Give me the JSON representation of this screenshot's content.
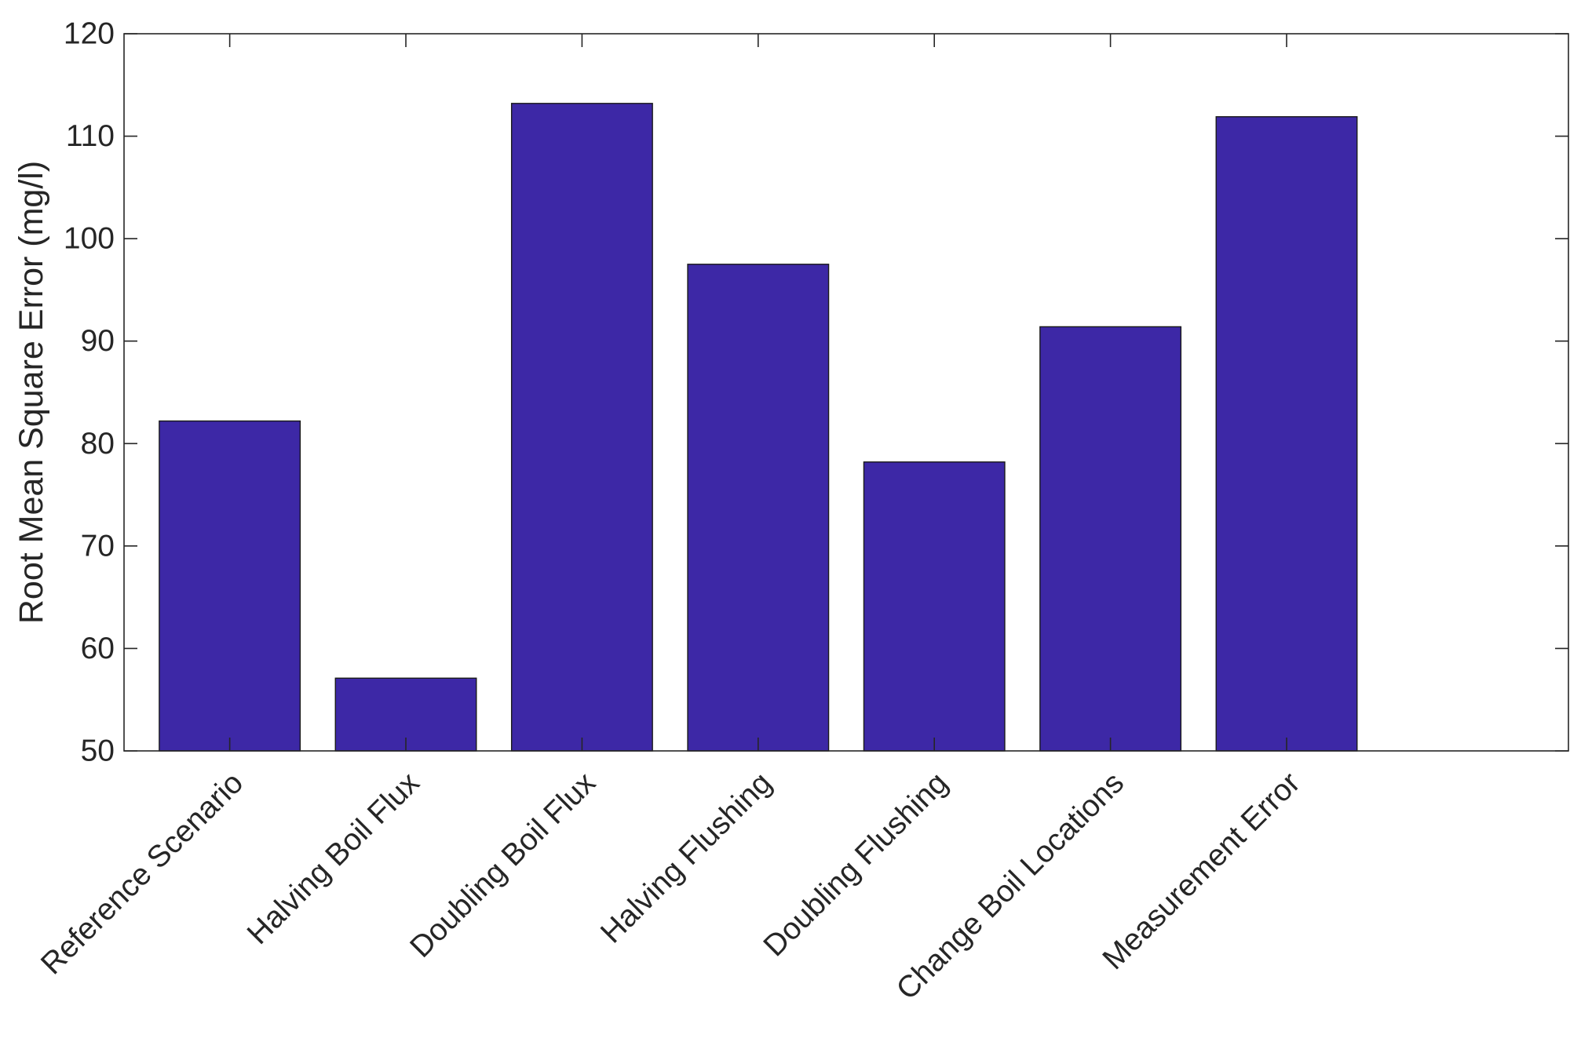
{
  "chart_data": {
    "type": "bar",
    "title": "",
    "xlabel": "",
    "ylabel": "Root Mean Square Error (mg/l)",
    "categories": [
      "Reference Scenario",
      "Halving Boil Flux",
      "Doubling Boil Flux",
      "Halving Flushing",
      "Doubling Flushing",
      "Change Boil Locations",
      "Measurement Error"
    ],
    "values": [
      82.2,
      57.1,
      113.2,
      97.5,
      78.2,
      91.4,
      111.9
    ],
    "ylim": [
      50,
      120
    ],
    "yticks": [
      50,
      60,
      70,
      80,
      90,
      100,
      110,
      120
    ],
    "ytick_labels": [
      "50",
      "60",
      "70",
      "80",
      "90",
      "100",
      "110",
      "120"
    ],
    "grid": false,
    "legend": "none",
    "colors": {
      "bar_fill": "#3d28a6",
      "bar_edge": "#1a1a1a",
      "axis": "#262626",
      "text": "#262626"
    }
  }
}
